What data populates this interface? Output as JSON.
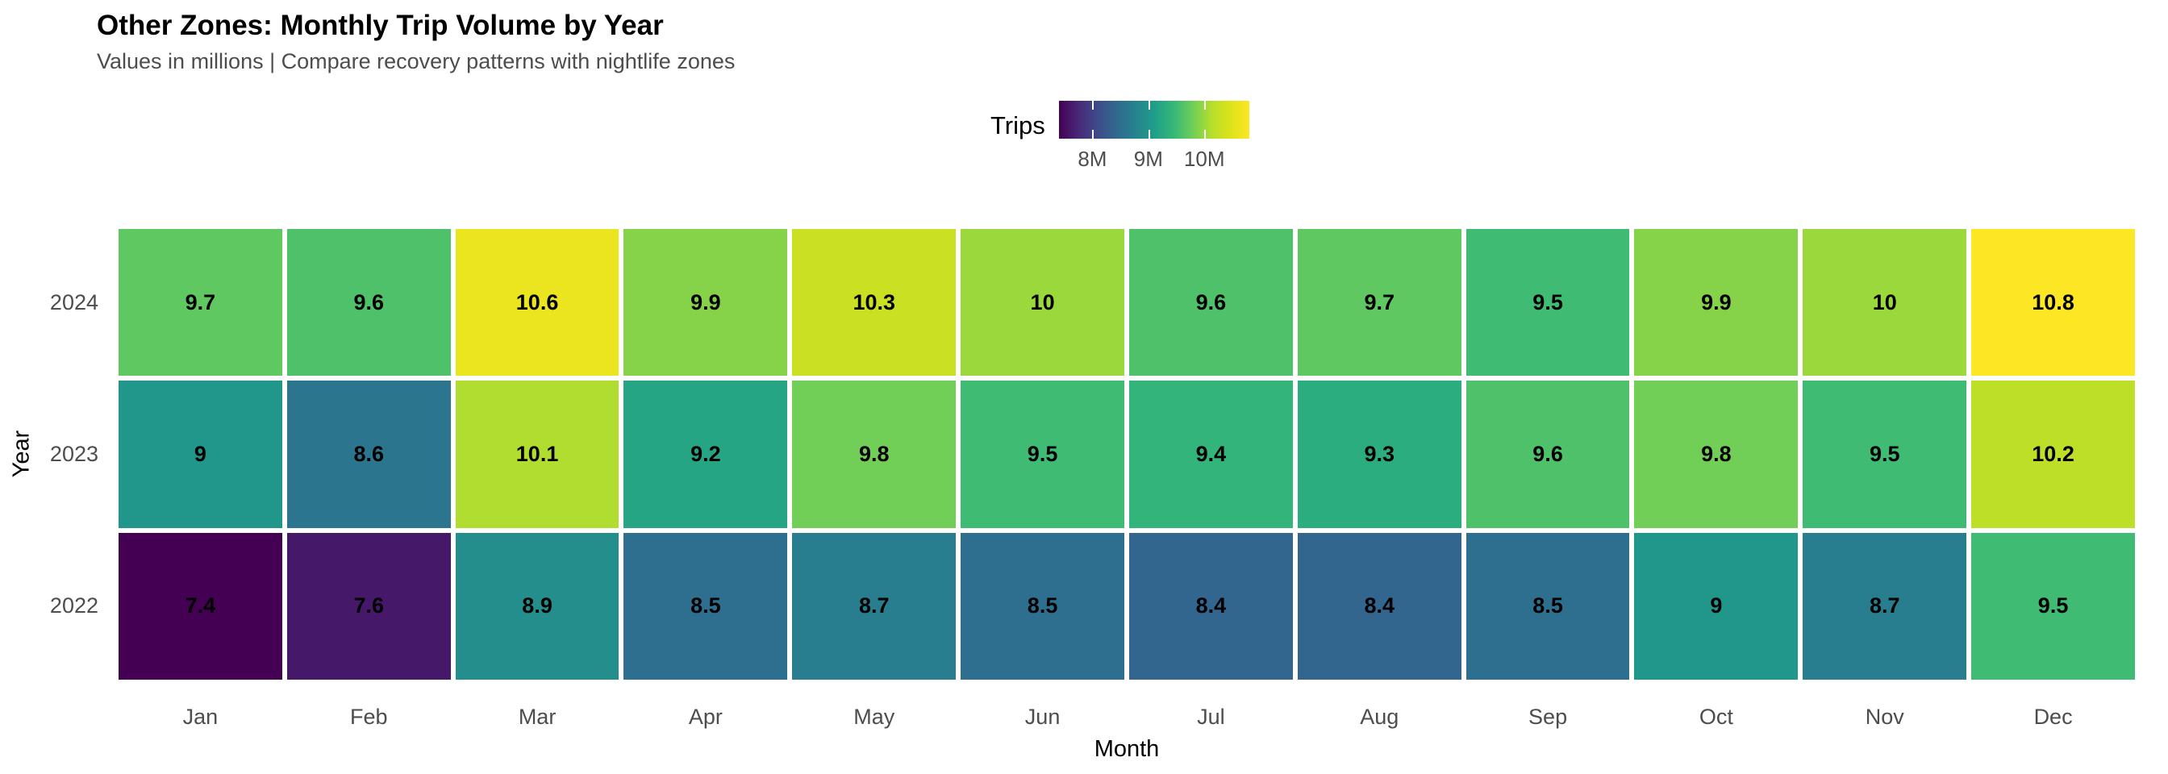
{
  "chart_data": {
    "type": "heatmap",
    "title": "Other Zones: Monthly Trip Volume by Year",
    "subtitle": "Values in millions | Compare recovery patterns with nightlife zones",
    "xlabel": "Month",
    "ylabel": "Year",
    "legend_title": "Trips",
    "categories": [
      "Jan",
      "Feb",
      "Mar",
      "Apr",
      "May",
      "Jun",
      "Jul",
      "Aug",
      "Sep",
      "Oct",
      "Nov",
      "Dec"
    ],
    "series": [
      {
        "name": "2024",
        "values": [
          9.7,
          9.6,
          10.6,
          9.9,
          10.3,
          10,
          9.6,
          9.7,
          9.5,
          9.9,
          10,
          10.8
        ]
      },
      {
        "name": "2023",
        "values": [
          9,
          8.6,
          10.1,
          9.2,
          9.8,
          9.5,
          9.4,
          9.3,
          9.6,
          9.8,
          9.5,
          10.2
        ]
      },
      {
        "name": "2022",
        "values": [
          7.4,
          7.6,
          8.9,
          8.5,
          8.7,
          8.5,
          8.4,
          8.4,
          8.5,
          9,
          8.7,
          9.5
        ]
      }
    ],
    "color_domain": [
      7.4,
      10.8
    ],
    "colormap": {
      "name": "viridis",
      "stops": [
        "#440154",
        "#482878",
        "#3E4A89",
        "#31688E",
        "#26828E",
        "#1F9E89",
        "#35B779",
        "#6DCD59",
        "#B4DE2C",
        "#DCE319",
        "#FDE725"
      ]
    },
    "legend_ticks": [
      {
        "value": 8,
        "label": "8M"
      },
      {
        "value": 9,
        "label": "9M"
      },
      {
        "value": 10,
        "label": "10M"
      }
    ],
    "colors": {
      "background": "#ffffff",
      "tile_border": "#ffffff",
      "cell_text": "#000000",
      "axis_tick_label": "#4d4d4d",
      "subtitle_text": "#4d4d4d",
      "title_text": "#000000",
      "legend_tick_mark": "#ffffff"
    }
  }
}
